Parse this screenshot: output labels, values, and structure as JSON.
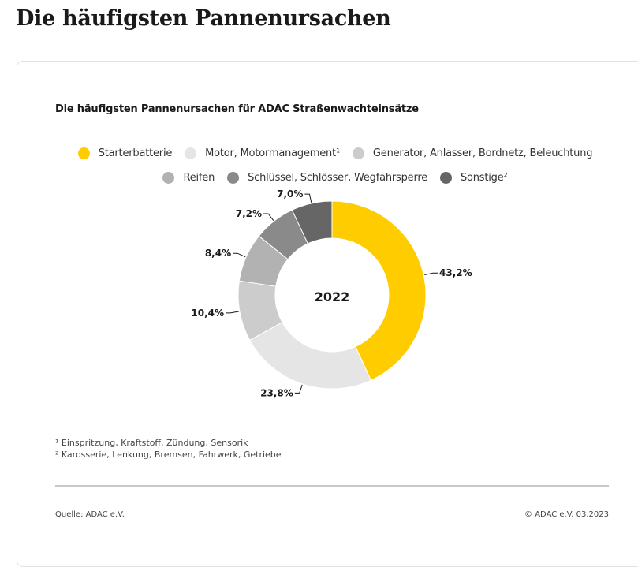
{
  "page": {
    "heading": "Die häufigsten Pannenursachen"
  },
  "chart_data": {
    "type": "pie",
    "variant": "donut",
    "title": "Die häufigsten Pannenursachen für ADAC Straßenwachteinsätze",
    "center_label": "2022",
    "unit": "%",
    "legend_position": "top-center",
    "categories": [
      "Starterbatterie",
      "Motor, Motormanagement¹",
      "Generator, Anlasser, Bordnetz, Beleuchtung",
      "Reifen",
      "Schlüssel, Schlösser, Wegfahrsperre",
      "Sonstige²"
    ],
    "values": [
      43.2,
      23.8,
      10.4,
      8.4,
      7.2,
      7.0
    ],
    "labels": [
      "43,2%",
      "23,8%",
      "10,4%",
      "8,4%",
      "7,2%",
      "7,0%"
    ],
    "colors": [
      "#ffcc00",
      "#e5e5e5",
      "#cccccc",
      "#b2b2b2",
      "#8a8a8a",
      "#666666"
    ],
    "legend_rows": [
      [
        0,
        1,
        2
      ],
      [
        3,
        4,
        5
      ]
    ]
  },
  "footnotes": [
    "¹ Einspritzung, Kraftstoff, Zündung, Sensorik",
    "² Karosserie, Lenkung, Bremsen, Fahrwerk, Getriebe"
  ],
  "footer": {
    "source": "Quelle: ADAC e.V.",
    "copyright": "© ADAC e.V. 03.2023"
  }
}
